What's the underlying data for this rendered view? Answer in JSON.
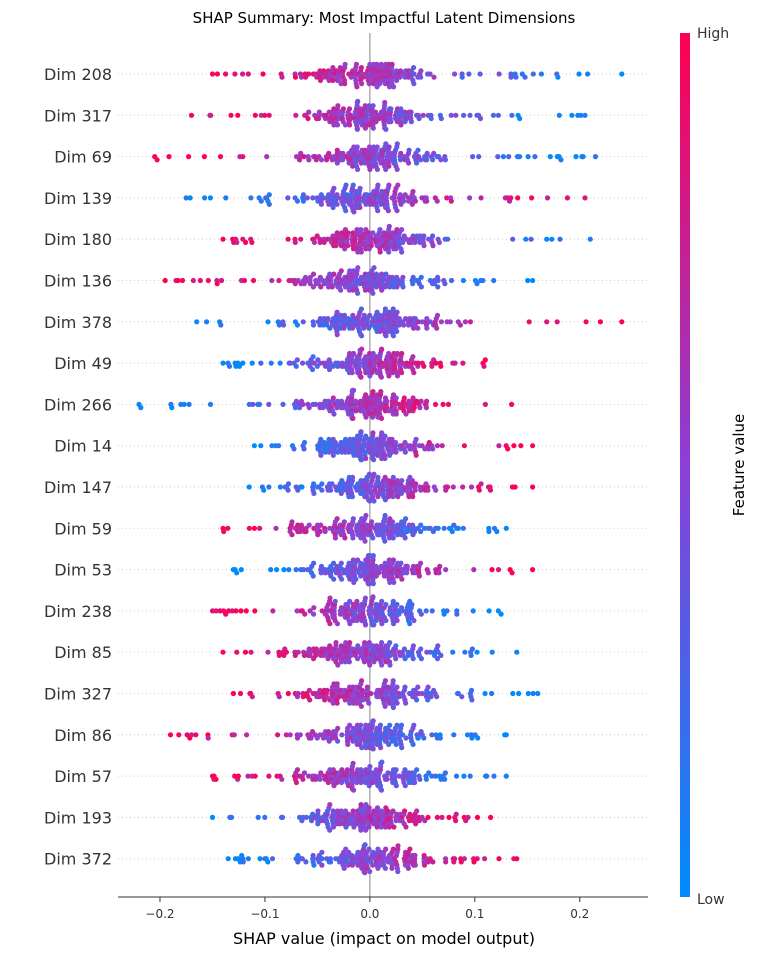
{
  "chart_data": {
    "type": "scatter",
    "subtype": "shap-beeswarm",
    "title": "SHAP Summary: Most Impactful Latent Dimensions",
    "xlabel": "SHAP value (impact on model output)",
    "xlim": [
      -0.24,
      0.265
    ],
    "xticks": [
      -0.2,
      -0.1,
      0.0,
      0.1,
      0.2
    ],
    "xtick_labels": [
      "−0.2",
      "−0.1",
      "0.0",
      "0.1",
      "0.2"
    ],
    "zero_line": 0.0,
    "colorbar": {
      "title": "Feature value",
      "high_label": "High",
      "low_label": "Low",
      "high_color": "#ff0d57",
      "low_color": "#1e88e5"
    },
    "features": [
      {
        "name": "Dim 208",
        "min": -0.15,
        "max": 0.24,
        "blue_side": "right",
        "core": 0.12
      },
      {
        "name": "Dim 317",
        "min": -0.17,
        "max": 0.205,
        "blue_side": "right",
        "core": 0.1
      },
      {
        "name": "Dim 69",
        "min": -0.205,
        "max": 0.215,
        "blue_side": "right",
        "core": 0.1
      },
      {
        "name": "Dim 139",
        "min": -0.175,
        "max": 0.205,
        "blue_side": "left",
        "core": 0.1
      },
      {
        "name": "Dim 180",
        "min": -0.14,
        "max": 0.21,
        "blue_side": "right",
        "core": 0.1
      },
      {
        "name": "Dim 136",
        "min": -0.195,
        "max": 0.155,
        "blue_side": "right",
        "core": 0.1
      },
      {
        "name": "Dim 378",
        "min": -0.165,
        "max": 0.24,
        "blue_side": "left",
        "core": 0.1
      },
      {
        "name": "Dim 49",
        "min": -0.14,
        "max": 0.11,
        "blue_side": "left",
        "core": 0.1
      },
      {
        "name": "Dim 266",
        "min": -0.22,
        "max": 0.135,
        "blue_side": "left",
        "core": 0.1
      },
      {
        "name": "Dim 14",
        "min": -0.11,
        "max": 0.155,
        "blue_side": "left",
        "core": 0.1
      },
      {
        "name": "Dim 147",
        "min": -0.115,
        "max": 0.155,
        "blue_side": "left",
        "core": 0.1
      },
      {
        "name": "Dim 59",
        "min": -0.14,
        "max": 0.13,
        "blue_side": "right",
        "core": 0.09
      },
      {
        "name": "Dim 53",
        "min": -0.13,
        "max": 0.155,
        "blue_side": "left",
        "core": 0.09
      },
      {
        "name": "Dim 238",
        "min": -0.15,
        "max": 0.125,
        "blue_side": "right",
        "core": 0.09
      },
      {
        "name": "Dim 85",
        "min": -0.14,
        "max": 0.14,
        "blue_side": "right",
        "core": 0.09
      },
      {
        "name": "Dim 327",
        "min": -0.13,
        "max": 0.16,
        "blue_side": "right",
        "core": 0.09
      },
      {
        "name": "Dim 86",
        "min": -0.19,
        "max": 0.13,
        "blue_side": "right",
        "core": 0.09
      },
      {
        "name": "Dim 57",
        "min": -0.15,
        "max": 0.13,
        "blue_side": "right",
        "core": 0.09
      },
      {
        "name": "Dim 193",
        "min": -0.15,
        "max": 0.115,
        "blue_side": "left",
        "core": 0.09
      },
      {
        "name": "Dim 372",
        "min": -0.135,
        "max": 0.14,
        "blue_side": "left",
        "core": 0.09
      }
    ]
  }
}
